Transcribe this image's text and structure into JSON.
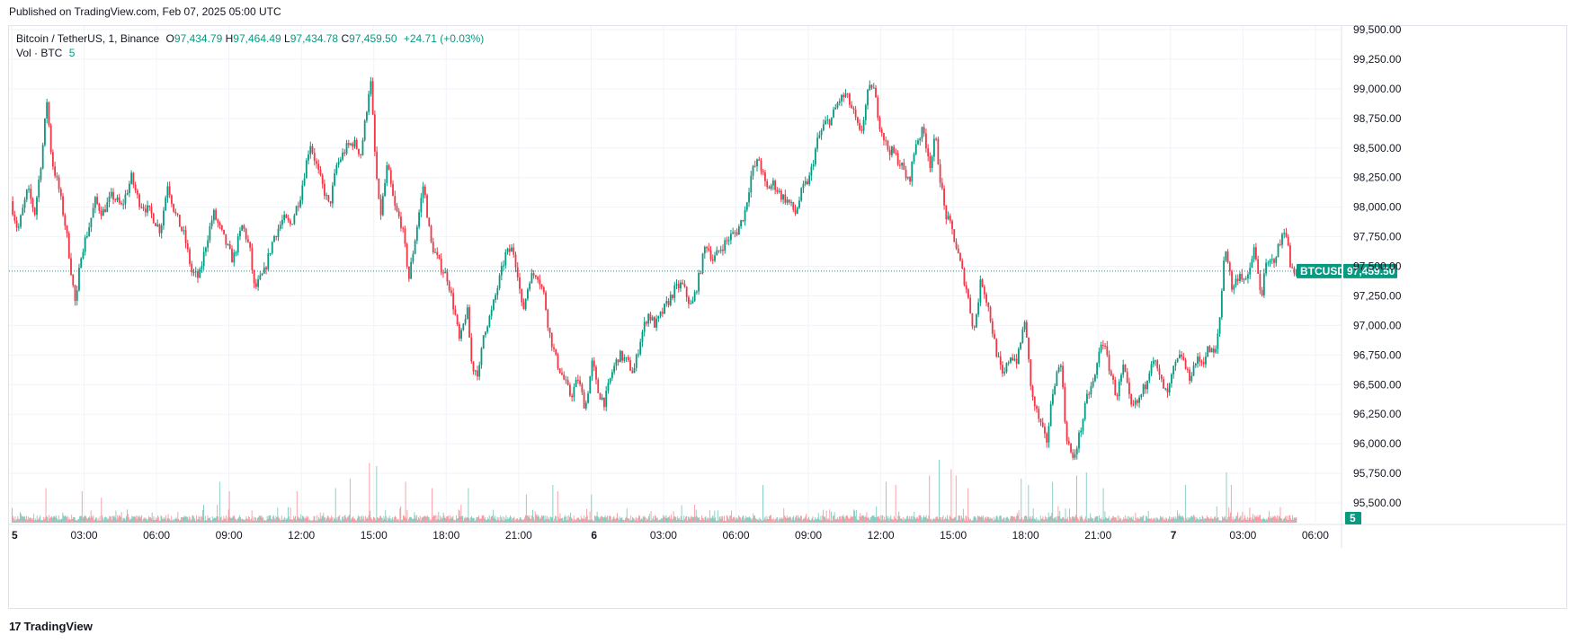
{
  "published": "Published on TradingView.com, Feb 07, 2025 05:00 UTC",
  "legend": {
    "symbol": "Bitcoin / TetherUS, 1, Binance",
    "open_label": "O",
    "open": "97,434.79",
    "high_label": "H",
    "high": "97,464.49",
    "low_label": "L",
    "low": "97,434.78",
    "close_label": "C",
    "close": "97,459.50",
    "change": "+24.71 (+0.03%)",
    "vol_label": "Vol · BTC",
    "vol_value": "5"
  },
  "footer": {
    "logo_text": "TradingView",
    "logo_mark": "17"
  },
  "colors": {
    "up": "#089981",
    "down": "#f23645",
    "grid": "#f0f3fa",
    "tag": "#089981"
  },
  "chart_data": {
    "type": "candlestick",
    "symbol": "BTCUSDT",
    "interval": "1",
    "exchange": "Binance",
    "last_price": 97459.5,
    "last_price_label": "97,459.50",
    "last_volume_label": "5",
    "ylim": [
      95300,
      99600
    ],
    "y_ticks": [
      {
        "value": 99500,
        "label": "99,500.00"
      },
      {
        "value": 99250,
        "label": "99,250.00"
      },
      {
        "value": 99000,
        "label": "99,000.00"
      },
      {
        "value": 98750,
        "label": "98,750.00"
      },
      {
        "value": 98500,
        "label": "98,500.00"
      },
      {
        "value": 98250,
        "label": "98,250.00"
      },
      {
        "value": 98000,
        "label": "98,000.00"
      },
      {
        "value": 97750,
        "label": "97,750.00"
      },
      {
        "value": 97500,
        "label": "97,500.00"
      },
      {
        "value": 97250,
        "label": "97,250.00"
      },
      {
        "value": 97000,
        "label": "97,000.00"
      },
      {
        "value": 96750,
        "label": "96,750.00"
      },
      {
        "value": 96500,
        "label": "96,500.00"
      },
      {
        "value": 96250,
        "label": "96,250.00"
      },
      {
        "value": 96000,
        "label": "96,000.00"
      },
      {
        "value": 95750,
        "label": "95,750.00"
      },
      {
        "value": 95500,
        "label": "95,500.00"
      }
    ],
    "x_ticks": [
      {
        "hour": 0,
        "label": "5",
        "bold": true
      },
      {
        "hour": 3,
        "label": "03:00"
      },
      {
        "hour": 6,
        "label": "06:00"
      },
      {
        "hour": 9,
        "label": "09:00"
      },
      {
        "hour": 12,
        "label": "12:00"
      },
      {
        "hour": 15,
        "label": "15:00"
      },
      {
        "hour": 18,
        "label": "18:00"
      },
      {
        "hour": 21,
        "label": "21:00"
      },
      {
        "hour": 24,
        "label": "6",
        "bold": true
      },
      {
        "hour": 27,
        "label": "03:00"
      },
      {
        "hour": 30,
        "label": "06:00"
      },
      {
        "hour": 33,
        "label": "09:00"
      },
      {
        "hour": 36,
        "label": "12:00"
      },
      {
        "hour": 39,
        "label": "15:00"
      },
      {
        "hour": 42,
        "label": "18:00"
      },
      {
        "hour": 45,
        "label": "21:00"
      },
      {
        "hour": 48,
        "label": "7",
        "bold": true
      },
      {
        "hour": 51,
        "label": "03:00"
      },
      {
        "hour": 54,
        "label": "06:00"
      }
    ],
    "xlim_hours": [
      0,
      55
    ],
    "last_hour": 53,
    "price_path": [
      [
        0.0,
        98050
      ],
      [
        0.3,
        97800
      ],
      [
        0.7,
        98150
      ],
      [
        1.0,
        97950
      ],
      [
        1.3,
        98450
      ],
      [
        1.5,
        98900
      ],
      [
        1.7,
        98400
      ],
      [
        2.0,
        98150
      ],
      [
        2.3,
        97800
      ],
      [
        2.6,
        97300
      ],
      [
        2.7,
        97150
      ],
      [
        2.9,
        97600
      ],
      [
        3.2,
        97800
      ],
      [
        3.5,
        98050
      ],
      [
        3.8,
        97950
      ],
      [
        4.2,
        98100
      ],
      [
        4.6,
        98000
      ],
      [
        5.0,
        98250
      ],
      [
        5.3,
        98050
      ],
      [
        5.8,
        97950
      ],
      [
        6.2,
        97800
      ],
      [
        6.5,
        98200
      ],
      [
        6.8,
        97950
      ],
      [
        7.2,
        97750
      ],
      [
        7.5,
        97450
      ],
      [
        7.8,
        97400
      ],
      [
        8.1,
        97700
      ],
      [
        8.4,
        97950
      ],
      [
        8.8,
        97750
      ],
      [
        9.2,
        97550
      ],
      [
        9.6,
        97850
      ],
      [
        9.9,
        97650
      ],
      [
        10.1,
        97300
      ],
      [
        10.5,
        97450
      ],
      [
        10.9,
        97750
      ],
      [
        11.3,
        97900
      ],
      [
        11.6,
        97850
      ],
      [
        12.0,
        98100
      ],
      [
        12.4,
        98550
      ],
      [
        12.8,
        98250
      ],
      [
        13.2,
        98000
      ],
      [
        13.5,
        98350
      ],
      [
        13.9,
        98500
      ],
      [
        14.2,
        98550
      ],
      [
        14.5,
        98450
      ],
      [
        14.7,
        98750
      ],
      [
        14.9,
        99100
      ],
      [
        15.1,
        98400
      ],
      [
        15.3,
        97900
      ],
      [
        15.6,
        98350
      ],
      [
        15.9,
        98000
      ],
      [
        16.2,
        97850
      ],
      [
        16.5,
        97400
      ],
      [
        16.8,
        97800
      ],
      [
        17.1,
        98200
      ],
      [
        17.4,
        97700
      ],
      [
        17.8,
        97500
      ],
      [
        18.1,
        97400
      ],
      [
        18.4,
        97100
      ],
      [
        18.6,
        96850
      ],
      [
        18.9,
        97150
      ],
      [
        19.1,
        96650
      ],
      [
        19.4,
        96600
      ],
      [
        19.6,
        96950
      ],
      [
        19.9,
        97100
      ],
      [
        20.2,
        97350
      ],
      [
        20.5,
        97600
      ],
      [
        20.8,
        97650
      ],
      [
        21.0,
        97450
      ],
      [
        21.2,
        97100
      ],
      [
        21.5,
        97400
      ],
      [
        21.8,
        97450
      ],
      [
        22.1,
        97250
      ],
      [
        22.3,
        96950
      ],
      [
        22.6,
        96700
      ],
      [
        22.9,
        96550
      ],
      [
        23.2,
        96400
      ],
      [
        23.5,
        96550
      ],
      [
        23.8,
        96300
      ],
      [
        24.1,
        96700
      ],
      [
        24.3,
        96450
      ],
      [
        24.6,
        96350
      ],
      [
        24.9,
        96600
      ],
      [
        25.2,
        96750
      ],
      [
        25.5,
        96700
      ],
      [
        25.8,
        96600
      ],
      [
        26.1,
        96900
      ],
      [
        26.4,
        97100
      ],
      [
        26.7,
        97000
      ],
      [
        27.1,
        97150
      ],
      [
        27.5,
        97300
      ],
      [
        27.8,
        97350
      ],
      [
        28.2,
        97150
      ],
      [
        28.5,
        97400
      ],
      [
        28.8,
        97700
      ],
      [
        29.1,
        97550
      ],
      [
        29.4,
        97650
      ],
      [
        29.8,
        97750
      ],
      [
        30.1,
        97800
      ],
      [
        30.4,
        97950
      ],
      [
        30.7,
        98300
      ],
      [
        31.0,
        98400
      ],
      [
        31.3,
        98150
      ],
      [
        31.6,
        98200
      ],
      [
        31.9,
        98100
      ],
      [
        32.2,
        98050
      ],
      [
        32.5,
        97950
      ],
      [
        32.8,
        98150
      ],
      [
        33.1,
        98250
      ],
      [
        33.4,
        98550
      ],
      [
        33.7,
        98700
      ],
      [
        34.0,
        98750
      ],
      [
        34.3,
        98900
      ],
      [
        34.6,
        98950
      ],
      [
        34.9,
        98800
      ],
      [
        35.2,
        98600
      ],
      [
        35.5,
        98950
      ],
      [
        35.7,
        99050
      ],
      [
        36.0,
        98700
      ],
      [
        36.3,
        98500
      ],
      [
        36.6,
        98450
      ],
      [
        36.9,
        98350
      ],
      [
        37.2,
        98200
      ],
      [
        37.5,
        98550
      ],
      [
        37.8,
        98650
      ],
      [
        38.1,
        98350
      ],
      [
        38.3,
        98600
      ],
      [
        38.5,
        98250
      ],
      [
        38.7,
        97950
      ],
      [
        39.0,
        97800
      ],
      [
        39.3,
        97550
      ],
      [
        39.6,
        97300
      ],
      [
        39.9,
        96950
      ],
      [
        40.2,
        97400
      ],
      [
        40.5,
        97150
      ],
      [
        40.8,
        96800
      ],
      [
        41.1,
        96550
      ],
      [
        41.4,
        96750
      ],
      [
        41.7,
        96700
      ],
      [
        42.0,
        97050
      ],
      [
        42.3,
        96400
      ],
      [
        42.6,
        96200
      ],
      [
        42.9,
        96000
      ],
      [
        43.2,
        96500
      ],
      [
        43.5,
        96700
      ],
      [
        43.7,
        96100
      ],
      [
        44.0,
        95850
      ],
      [
        44.3,
        96100
      ],
      [
        44.6,
        96400
      ],
      [
        44.9,
        96550
      ],
      [
        45.2,
        96900
      ],
      [
        45.5,
        96650
      ],
      [
        45.8,
        96400
      ],
      [
        46.1,
        96650
      ],
      [
        46.4,
        96300
      ],
      [
        46.7,
        96350
      ],
      [
        47.0,
        96500
      ],
      [
        47.3,
        96750
      ],
      [
        47.6,
        96550
      ],
      [
        47.9,
        96400
      ],
      [
        48.2,
        96650
      ],
      [
        48.5,
        96750
      ],
      [
        48.8,
        96550
      ],
      [
        49.1,
        96700
      ],
      [
        49.4,
        96700
      ],
      [
        49.6,
        96800
      ],
      [
        49.9,
        96750
      ],
      [
        50.1,
        97100
      ],
      [
        50.3,
        97700
      ],
      [
        50.6,
        97300
      ],
      [
        50.9,
        97450
      ],
      [
        51.2,
        97350
      ],
      [
        51.5,
        97650
      ],
      [
        51.8,
        97250
      ],
      [
        52.0,
        97500
      ],
      [
        52.3,
        97550
      ],
      [
        52.6,
        97700
      ],
      [
        52.8,
        97850
      ],
      [
        53.0,
        97500
      ],
      [
        53.2,
        97460
      ]
    ],
    "volume_axis": {
      "max": 40
    },
    "volume_spikes": [
      [
        1.4,
        11
      ],
      [
        2.9,
        10
      ],
      [
        3.7,
        8
      ],
      [
        8.6,
        13
      ],
      [
        9.0,
        10
      ],
      [
        11.8,
        10
      ],
      [
        13.4,
        11
      ],
      [
        14.0,
        14
      ],
      [
        14.8,
        19
      ],
      [
        15.1,
        18
      ],
      [
        16.3,
        13
      ],
      [
        17.4,
        11
      ],
      [
        18.9,
        11
      ],
      [
        21.3,
        9
      ],
      [
        22.4,
        12
      ],
      [
        22.6,
        10
      ],
      [
        24.0,
        9
      ],
      [
        31.1,
        12
      ],
      [
        36.2,
        13
      ],
      [
        36.6,
        12
      ],
      [
        38.0,
        15
      ],
      [
        38.4,
        20
      ],
      [
        38.9,
        17
      ],
      [
        39.1,
        15
      ],
      [
        39.6,
        11
      ],
      [
        41.8,
        14
      ],
      [
        42.1,
        12
      ],
      [
        43.1,
        13
      ],
      [
        44.1,
        15
      ],
      [
        44.5,
        16
      ],
      [
        45.2,
        11
      ],
      [
        48.6,
        12
      ],
      [
        50.3,
        16
      ],
      [
        50.5,
        12
      ]
    ]
  }
}
